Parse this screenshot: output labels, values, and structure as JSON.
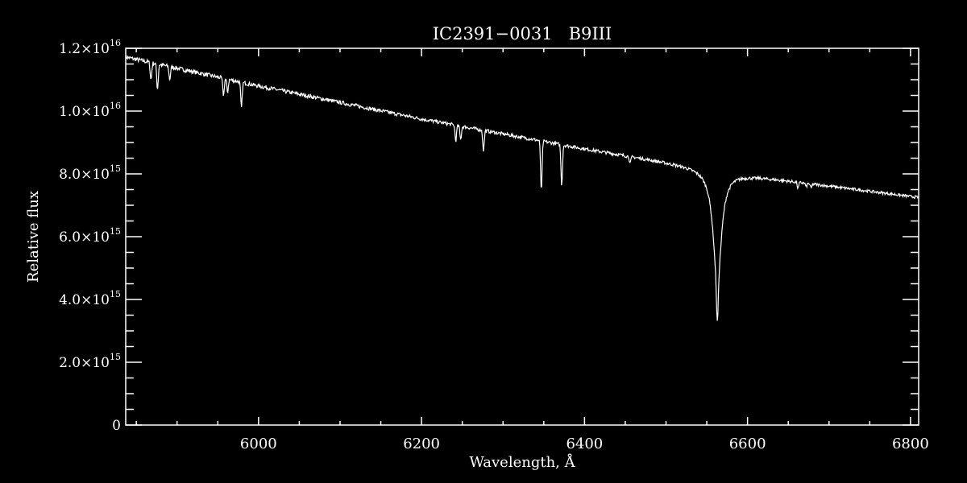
{
  "chart_data": {
    "type": "line",
    "title": "IC2391−0031   B9III",
    "xlabel": "Wavelength, Å",
    "ylabel": "Relative flux",
    "xlim": [
      5837,
      6810
    ],
    "ylim": [
      0,
      1.2e+16
    ],
    "x_ticks": [
      6000,
      6200,
      6400,
      6600,
      6800
    ],
    "x_tick_labels": [
      "6000",
      "6200",
      "6400",
      "6600",
      "6800"
    ],
    "x_minor_step": 50,
    "y_ticks": [
      0,
      2000000000000000.0,
      4000000000000000.0,
      6000000000000000.0,
      8000000000000000.0,
      1e+16,
      1.2e+16
    ],
    "y_tick_labels": [
      {
        "mant": "0",
        "exp": ""
      },
      {
        "mant": "2.0×10",
        "exp": "15"
      },
      {
        "mant": "4.0×10",
        "exp": "15"
      },
      {
        "mant": "6.0×10",
        "exp": "15"
      },
      {
        "mant": "8.0×10",
        "exp": "15"
      },
      {
        "mant": "1.0×10",
        "exp": "16"
      },
      {
        "mant": "1.2×10",
        "exp": "16"
      }
    ],
    "y_minor_step": 500000000000000.0,
    "grid": false,
    "colors": {
      "background": "#000000",
      "line": "#ffffff",
      "axes": "#ffffff"
    },
    "continuum": [
      [
        5837,
        1.172e+16
      ],
      [
        6000,
        1.08e+16
      ],
      [
        6200,
        9750000000000000.0
      ],
      [
        6400,
        8800000000000000.0
      ],
      [
        6600,
        7950000000000000.0
      ],
      [
        6810,
        7250000000000000.0
      ]
    ],
    "absorption_lines": [
      {
        "wavelength": 5868,
        "min_flux": 1.1e+16,
        "profile": "gauss"
      },
      {
        "wavelength": 5876,
        "min_flux": 1.07e+16,
        "profile": "gauss"
      },
      {
        "wavelength": 5891,
        "min_flux": 1.1e+16,
        "profile": "gauss"
      },
      {
        "wavelength": 5957,
        "min_flux": 1.05e+16,
        "profile": "gauss"
      },
      {
        "wavelength": 5962,
        "min_flux": 1.06e+16,
        "profile": "gauss"
      },
      {
        "wavelength": 5979,
        "min_flux": 1.01e+16,
        "profile": "gauss"
      },
      {
        "wavelength": 6242,
        "min_flux": 9050000000000000.0,
        "profile": "gauss"
      },
      {
        "wavelength": 6248,
        "min_flux": 9100000000000000.0,
        "profile": "gauss"
      },
      {
        "wavelength": 6276,
        "min_flux": 8750000000000000.0,
        "profile": "gauss"
      },
      {
        "wavelength": 6347,
        "min_flux": 7450000000000000.0,
        "profile": "gauss"
      },
      {
        "wavelength": 6372,
        "min_flux": 7650000000000000.0,
        "profile": "gauss"
      },
      {
        "wavelength": 6456,
        "min_flux": 8350000000000000.0,
        "profile": "gauss"
      },
      {
        "wavelength": 6563,
        "min_flux": 3280000000000000.0,
        "profile": "lorentz"
      },
      {
        "wavelength": 6662,
        "min_flux": 7550000000000000.0,
        "profile": "gauss"
      },
      {
        "wavelength": 6672,
        "min_flux": 7600000000000000.0,
        "profile": "gauss"
      },
      {
        "wavelength": 6678,
        "min_flux": 7550000000000000.0,
        "profile": "gauss"
      }
    ]
  }
}
